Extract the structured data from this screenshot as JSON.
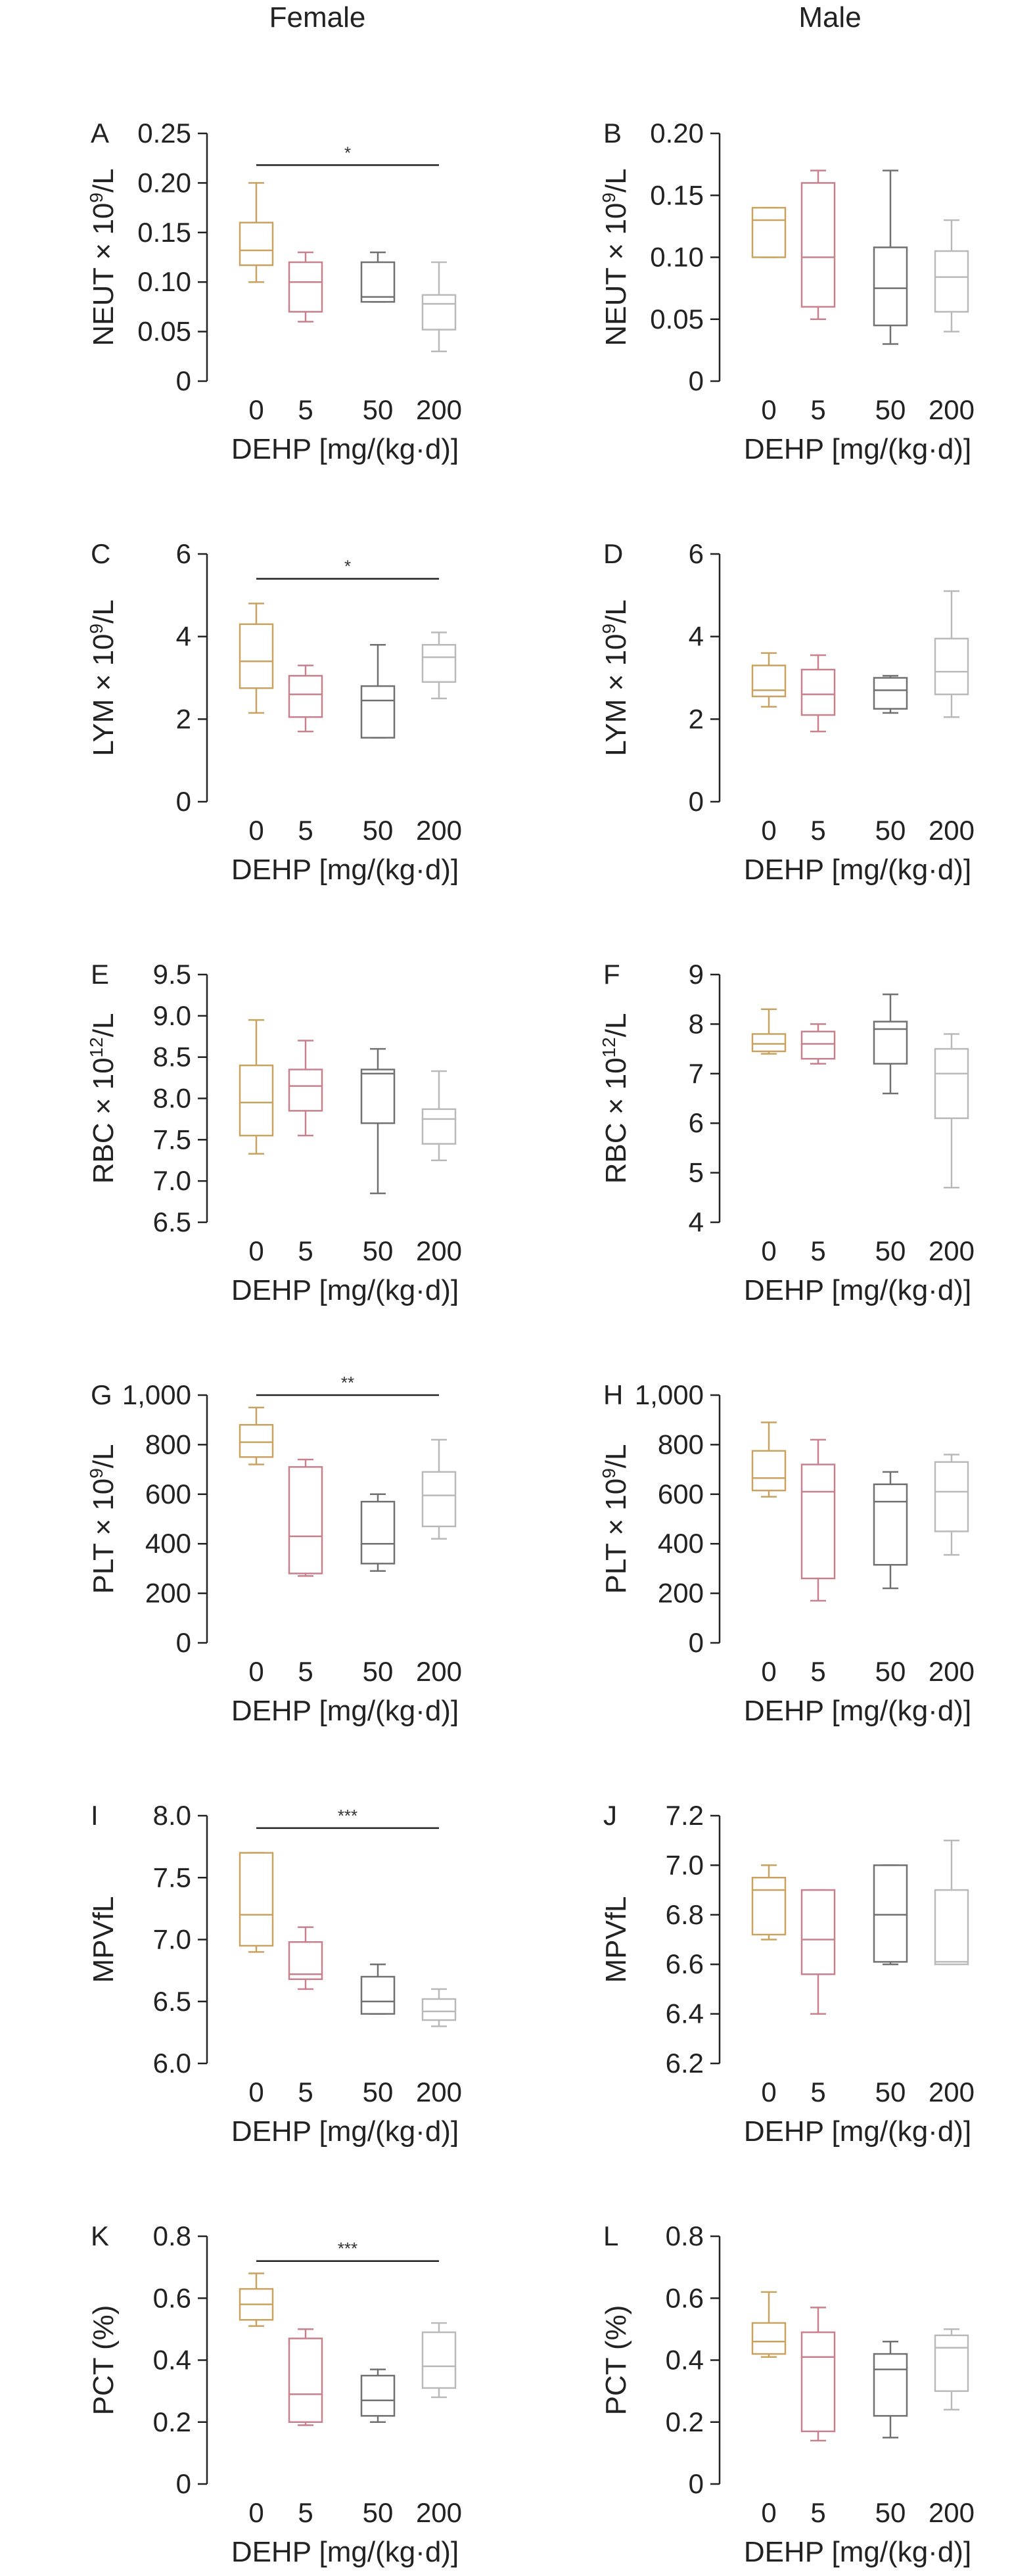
{
  "columns": [
    "Female",
    "Male"
  ],
  "colors": {
    "0": "#c9a25f",
    "5": "#c8808c",
    "50": "#707070",
    "200": "#b9b9b9",
    "axis": "#222222"
  },
  "chart_data": [
    {
      "type": "boxplot",
      "panel": "A",
      "ylabel": "NEUT × 10^9/L",
      "ylabel_parts": {
        "pre": "NEUT × 10",
        "sup": "9",
        "post": "/L"
      },
      "xlabel": "DEHP [mg/(kg·d)]",
      "categories": [
        "0",
        "5",
        "50",
        "200"
      ],
      "ylim": [
        0,
        0.25
      ],
      "yticks": [
        0,
        0.05,
        0.1,
        0.15,
        0.2,
        0.25
      ],
      "ytick_labels": [
        "0",
        "0.05",
        "0.10",
        "0.15",
        "0.20",
        "0.25"
      ],
      "boxes": [
        {
          "min": 0.1,
          "q1": 0.117,
          "median": 0.132,
          "q3": 0.16,
          "max": 0.2
        },
        {
          "min": 0.06,
          "q1": 0.07,
          "median": 0.1,
          "q3": 0.12,
          "max": 0.13
        },
        {
          "min": 0.08,
          "q1": 0.08,
          "median": 0.085,
          "q3": 0.12,
          "max": 0.13
        },
        {
          "min": 0.03,
          "q1": 0.052,
          "median": 0.078,
          "q3": 0.087,
          "max": 0.12
        }
      ],
      "significance": {
        "from": 0,
        "to": 3,
        "label": "*",
        "y": 0.218
      }
    },
    {
      "type": "boxplot",
      "panel": "B",
      "ylabel": "NEUT × 10^9/L",
      "ylabel_parts": {
        "pre": "NEUT × 10",
        "sup": "9",
        "post": "/L"
      },
      "xlabel": "DEHP [mg/(kg·d)]",
      "categories": [
        "0",
        "5",
        "50",
        "200"
      ],
      "ylim": [
        0,
        0.2
      ],
      "yticks": [
        0,
        0.05,
        0.1,
        0.15,
        0.2
      ],
      "ytick_labels": [
        "0",
        "0.05",
        "0.10",
        "0.15",
        "0.20"
      ],
      "boxes": [
        {
          "min": 0.1,
          "q1": 0.1,
          "median": 0.13,
          "q3": 0.14,
          "max": 0.14
        },
        {
          "min": 0.05,
          "q1": 0.06,
          "median": 0.1,
          "q3": 0.16,
          "max": 0.17
        },
        {
          "min": 0.03,
          "q1": 0.045,
          "median": 0.075,
          "q3": 0.108,
          "max": 0.17
        },
        {
          "min": 0.04,
          "q1": 0.056,
          "median": 0.084,
          "q3": 0.105,
          "max": 0.13
        }
      ]
    },
    {
      "type": "boxplot",
      "panel": "C",
      "ylabel": "LYM × 10^9/L",
      "ylabel_parts": {
        "pre": "LYM × 10",
        "sup": "9",
        "post": "/L"
      },
      "xlabel": "DEHP [mg/(kg·d)]",
      "categories": [
        "0",
        "5",
        "50",
        "200"
      ],
      "ylim": [
        0,
        6
      ],
      "yticks": [
        0,
        2,
        4,
        6
      ],
      "ytick_labels": [
        "0",
        "2",
        "4",
        "6"
      ],
      "boxes": [
        {
          "min": 2.15,
          "q1": 2.75,
          "median": 3.4,
          "q3": 4.3,
          "max": 4.8
        },
        {
          "min": 1.7,
          "q1": 2.05,
          "median": 2.6,
          "q3": 3.05,
          "max": 3.3
        },
        {
          "min": 1.55,
          "q1": 1.55,
          "median": 2.45,
          "q3": 2.8,
          "max": 3.8
        },
        {
          "min": 2.5,
          "q1": 2.9,
          "median": 3.5,
          "q3": 3.8,
          "max": 4.1
        }
      ],
      "significance": {
        "from": 0,
        "to": 3,
        "label": "*",
        "y": 5.4
      }
    },
    {
      "type": "boxplot",
      "panel": "D",
      "ylabel": "LYM × 10^9/L",
      "ylabel_parts": {
        "pre": "LYM × 10",
        "sup": "9",
        "post": "/L"
      },
      "xlabel": "DEHP [mg/(kg·d)]",
      "categories": [
        "0",
        "5",
        "50",
        "200"
      ],
      "ylim": [
        0,
        6
      ],
      "yticks": [
        0,
        2,
        4,
        6
      ],
      "ytick_labels": [
        "0",
        "2",
        "4",
        "6"
      ],
      "boxes": [
        {
          "min": 2.3,
          "q1": 2.55,
          "median": 2.7,
          "q3": 3.3,
          "max": 3.6
        },
        {
          "min": 1.7,
          "q1": 2.1,
          "median": 2.6,
          "q3": 3.2,
          "max": 3.55
        },
        {
          "min": 2.15,
          "q1": 2.25,
          "median": 2.7,
          "q3": 3.0,
          "max": 3.05
        },
        {
          "min": 2.05,
          "q1": 2.6,
          "median": 3.15,
          "q3": 3.95,
          "max": 5.1
        }
      ]
    },
    {
      "type": "boxplot",
      "panel": "E",
      "ylabel": "RBC × 10^12/L",
      "ylabel_parts": {
        "pre": "RBC × 10",
        "sup": "12",
        "post": "/L"
      },
      "xlabel": "DEHP [mg/(kg·d)]",
      "categories": [
        "0",
        "5",
        "50",
        "200"
      ],
      "ylim": [
        6.5,
        9.5
      ],
      "yticks": [
        6.5,
        7.0,
        7.5,
        8.0,
        8.5,
        9.0,
        9.5
      ],
      "ytick_labels": [
        "6.5",
        "7.0",
        "7.5",
        "8.0",
        "8.5",
        "9.0",
        "9.5"
      ],
      "boxes": [
        {
          "min": 7.33,
          "q1": 7.55,
          "median": 7.95,
          "q3": 8.4,
          "max": 8.95
        },
        {
          "min": 7.55,
          "q1": 7.85,
          "median": 8.15,
          "q3": 8.35,
          "max": 8.7
        },
        {
          "min": 6.85,
          "q1": 7.7,
          "median": 8.3,
          "q3": 8.35,
          "max": 8.6
        },
        {
          "min": 7.25,
          "q1": 7.45,
          "median": 7.75,
          "q3": 7.87,
          "max": 8.33
        }
      ]
    },
    {
      "type": "boxplot",
      "panel": "F",
      "ylabel": "RBC × 10^12/L",
      "ylabel_parts": {
        "pre": "RBC × 10",
        "sup": "12",
        "post": "/L"
      },
      "xlabel": "DEHP [mg/(kg·d)]",
      "categories": [
        "0",
        "5",
        "50",
        "200"
      ],
      "ylim": [
        4,
        9
      ],
      "yticks": [
        4,
        5,
        6,
        7,
        8,
        9
      ],
      "ytick_labels": [
        "4",
        "5",
        "6",
        "7",
        "8",
        "9"
      ],
      "boxes": [
        {
          "min": 7.4,
          "q1": 7.45,
          "median": 7.6,
          "q3": 7.8,
          "max": 8.3
        },
        {
          "min": 7.2,
          "q1": 7.3,
          "median": 7.6,
          "q3": 7.85,
          "max": 8.0
        },
        {
          "min": 6.6,
          "q1": 7.2,
          "median": 7.9,
          "q3": 8.05,
          "max": 8.6
        },
        {
          "min": 4.7,
          "q1": 6.1,
          "median": 7.0,
          "q3": 7.5,
          "max": 7.8
        }
      ]
    },
    {
      "type": "boxplot",
      "panel": "G",
      "ylabel": "PLT × 10^9/L",
      "ylabel_parts": {
        "pre": "PLT × 10",
        "sup": "9",
        "post": "/L"
      },
      "xlabel": "DEHP [mg/(kg·d)]",
      "categories": [
        "0",
        "5",
        "50",
        "200"
      ],
      "ylim": [
        0,
        1000
      ],
      "yticks": [
        0,
        200,
        400,
        600,
        800,
        1000
      ],
      "ytick_labels": [
        "0",
        "200",
        "400",
        "600",
        "800",
        "1,000"
      ],
      "boxes": [
        {
          "min": 720,
          "q1": 750,
          "median": 810,
          "q3": 880,
          "max": 950
        },
        {
          "min": 270,
          "q1": 280,
          "median": 430,
          "q3": 710,
          "max": 740
        },
        {
          "min": 290,
          "q1": 320,
          "median": 400,
          "q3": 570,
          "max": 600
        },
        {
          "min": 420,
          "q1": 470,
          "median": 595,
          "q3": 690,
          "max": 820
        }
      ],
      "significance": {
        "from": 0,
        "to": 3,
        "label": "**",
        "y": 1000
      }
    },
    {
      "type": "boxplot",
      "panel": "H",
      "ylabel": "PLT × 10^9/L",
      "ylabel_parts": {
        "pre": "PLT × 10",
        "sup": "9",
        "post": "/L"
      },
      "xlabel": "DEHP [mg/(kg·d)]",
      "categories": [
        "0",
        "5",
        "50",
        "200"
      ],
      "ylim": [
        0,
        1000
      ],
      "yticks": [
        0,
        200,
        400,
        600,
        800,
        1000
      ],
      "ytick_labels": [
        "0",
        "200",
        "400",
        "600",
        "800",
        "1,000"
      ],
      "boxes": [
        {
          "min": 590,
          "q1": 615,
          "median": 665,
          "q3": 775,
          "max": 890
        },
        {
          "min": 170,
          "q1": 260,
          "median": 610,
          "q3": 720,
          "max": 820
        },
        {
          "min": 220,
          "q1": 315,
          "median": 570,
          "q3": 640,
          "max": 690
        },
        {
          "min": 355,
          "q1": 450,
          "median": 610,
          "q3": 730,
          "max": 760
        }
      ]
    },
    {
      "type": "boxplot",
      "panel": "I",
      "ylabel": "MPVfL",
      "ylabel_parts": {
        "pre": "MPVfL",
        "sup": "",
        "post": ""
      },
      "xlabel": "DEHP [mg/(kg·d)]",
      "categories": [
        "0",
        "5",
        "50",
        "200"
      ],
      "ylim": [
        6.0,
        8.0
      ],
      "yticks": [
        6.0,
        6.5,
        7.0,
        7.5,
        8.0
      ],
      "ytick_labels": [
        "6.0",
        "6.5",
        "7.0",
        "7.5",
        "8.0"
      ],
      "boxes": [
        {
          "min": 6.9,
          "q1": 6.95,
          "median": 7.2,
          "q3": 7.7,
          "max": 7.7
        },
        {
          "min": 6.6,
          "q1": 6.68,
          "median": 6.72,
          "q3": 6.98,
          "max": 7.1
        },
        {
          "min": 6.4,
          "q1": 6.4,
          "median": 6.5,
          "q3": 6.7,
          "max": 6.8
        },
        {
          "min": 6.3,
          "q1": 6.35,
          "median": 6.42,
          "q3": 6.52,
          "max": 6.6
        }
      ],
      "significance": {
        "from": 0,
        "to": 3,
        "label": "***",
        "y": 7.9
      }
    },
    {
      "type": "boxplot",
      "panel": "J",
      "ylabel": "MPVfL",
      "ylabel_parts": {
        "pre": "MPVfL",
        "sup": "",
        "post": ""
      },
      "xlabel": "DEHP [mg/(kg·d)]",
      "categories": [
        "0",
        "5",
        "50",
        "200"
      ],
      "ylim": [
        6.2,
        7.2
      ],
      "yticks": [
        6.2,
        6.4,
        6.6,
        6.8,
        7.0,
        7.2
      ],
      "ytick_labels": [
        "6.2",
        "6.4",
        "6.6",
        "6.8",
        "7.0",
        "7.2"
      ],
      "boxes": [
        {
          "min": 6.7,
          "q1": 6.72,
          "median": 6.9,
          "q3": 6.95,
          "max": 7.0
        },
        {
          "min": 6.4,
          "q1": 6.56,
          "median": 6.7,
          "q3": 6.9,
          "max": 6.9
        },
        {
          "min": 6.6,
          "q1": 6.61,
          "median": 6.8,
          "q3": 7.0,
          "max": 7.0
        },
        {
          "min": 6.6,
          "q1": 6.6,
          "median": 6.61,
          "q3": 6.9,
          "max": 7.1
        }
      ]
    },
    {
      "type": "boxplot",
      "panel": "K",
      "ylabel": "PCT (%)",
      "ylabel_parts": {
        "pre": "PCT (%)",
        "sup": "",
        "post": ""
      },
      "xlabel": "DEHP [mg/(kg·d)]",
      "categories": [
        "0",
        "5",
        "50",
        "200"
      ],
      "ylim": [
        0,
        0.8
      ],
      "yticks": [
        0,
        0.2,
        0.4,
        0.6,
        0.8
      ],
      "ytick_labels": [
        "0",
        "0.2",
        "0.4",
        "0.6",
        "0.8"
      ],
      "boxes": [
        {
          "min": 0.51,
          "q1": 0.53,
          "median": 0.58,
          "q3": 0.63,
          "max": 0.68
        },
        {
          "min": 0.19,
          "q1": 0.2,
          "median": 0.29,
          "q3": 0.47,
          "max": 0.5
        },
        {
          "min": 0.2,
          "q1": 0.22,
          "median": 0.27,
          "q3": 0.35,
          "max": 0.37
        },
        {
          "min": 0.28,
          "q1": 0.31,
          "median": 0.38,
          "q3": 0.49,
          "max": 0.52
        }
      ],
      "significance": {
        "from": 0,
        "to": 3,
        "label": "***",
        "y": 0.72
      }
    },
    {
      "type": "boxplot",
      "panel": "L",
      "ylabel": "PCT (%)",
      "ylabel_parts": {
        "pre": "PCT (%)",
        "sup": "",
        "post": ""
      },
      "xlabel": "DEHP [mg/(kg·d)]",
      "categories": [
        "0",
        "5",
        "50",
        "200"
      ],
      "ylim": [
        0,
        0.8
      ],
      "yticks": [
        0,
        0.2,
        0.4,
        0.6,
        0.8
      ],
      "ytick_labels": [
        "0",
        "0.2",
        "0.4",
        "0.6",
        "0.8"
      ],
      "boxes": [
        {
          "min": 0.41,
          "q1": 0.42,
          "median": 0.46,
          "q3": 0.52,
          "max": 0.62
        },
        {
          "min": 0.14,
          "q1": 0.17,
          "median": 0.41,
          "q3": 0.49,
          "max": 0.57
        },
        {
          "min": 0.15,
          "q1": 0.22,
          "median": 0.37,
          "q3": 0.42,
          "max": 0.46
        },
        {
          "min": 0.24,
          "q1": 0.3,
          "median": 0.44,
          "q3": 0.48,
          "max": 0.5
        }
      ]
    }
  ]
}
